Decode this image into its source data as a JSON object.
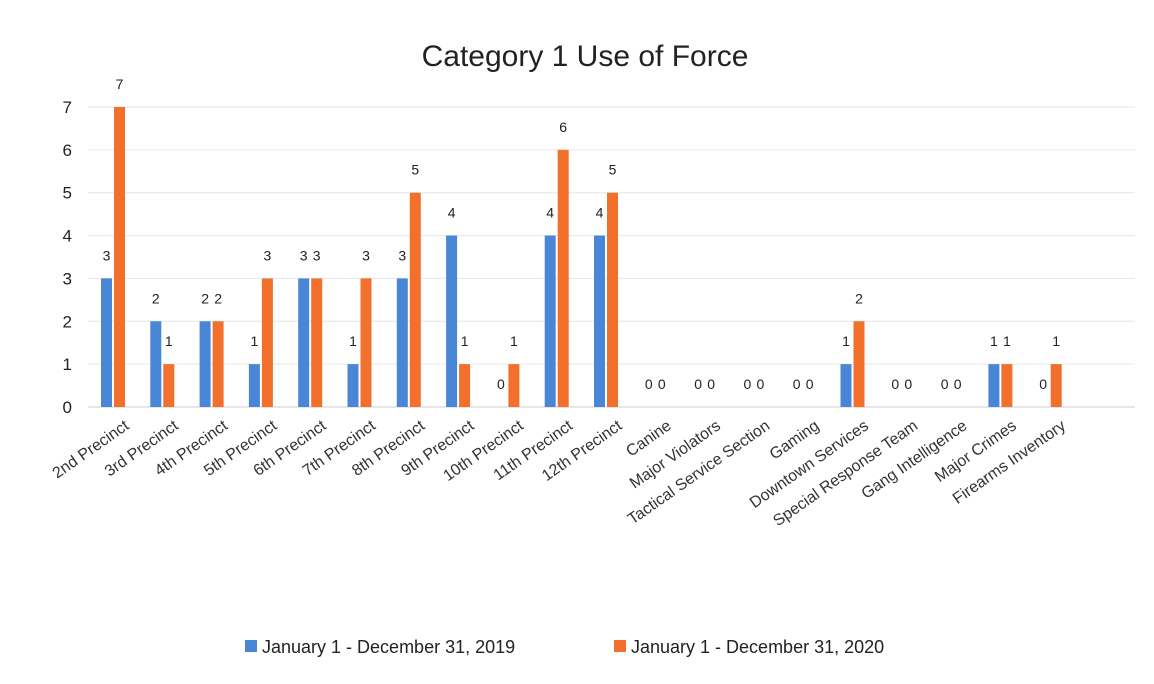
{
  "chart_data": {
    "type": "bar",
    "title": "Category 1 Use of Force",
    "xlabel": "",
    "ylabel": "",
    "ylim": [
      0,
      7
    ],
    "yticks": [
      0,
      1,
      2,
      3,
      4,
      5,
      6,
      7
    ],
    "grid": true,
    "legend_position": "bottom",
    "categories": [
      "2nd Precinct",
      "3rd Precinct",
      "4th Precinct",
      "5th Precinct",
      "6th Precinct",
      "7th Precinct",
      "8th Precinct",
      "9th Precinct",
      "10th Precinct",
      "11th Precinct",
      "12th Precinct",
      "Canine",
      "Major Violators",
      "Tactical Service Section",
      "Gaming",
      "Downtown Services",
      "Special Response Team",
      "Gang Intelligence",
      "Major Crimes",
      "Firearms Inventory"
    ],
    "series": [
      {
        "name": "January 1 - December 31, 2019",
        "color": "#4a86d6",
        "values": [
          3,
          2,
          2,
          1,
          3,
          1,
          3,
          4,
          0,
          4,
          4,
          0,
          0,
          0,
          0,
          1,
          0,
          0,
          1,
          0
        ]
      },
      {
        "name": "January 1 - December 31, 2020",
        "color": "#f26f2c",
        "values": [
          7,
          1,
          2,
          3,
          3,
          3,
          5,
          1,
          1,
          6,
          5,
          0,
          0,
          0,
          0,
          2,
          0,
          0,
          1,
          1
        ]
      }
    ]
  }
}
